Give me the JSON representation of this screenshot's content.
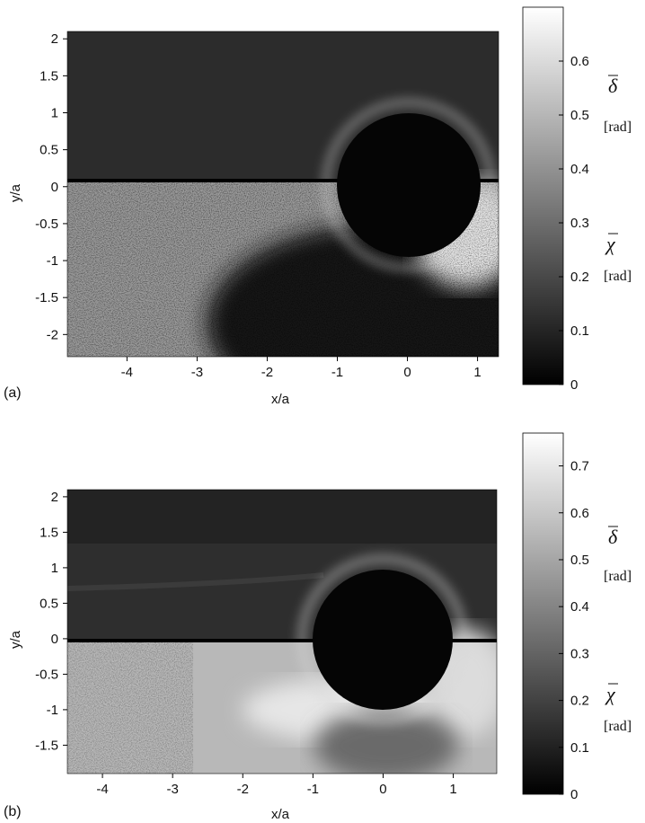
{
  "chart_data": [
    {
      "type": "heatmap",
      "panel_label": "(a)",
      "xlabel": "x/a",
      "ylabel": "y/a",
      "xlim": [
        -4.85,
        1.3
      ],
      "ylim": [
        -2.3,
        2.1
      ],
      "x_ticks": [
        "-4",
        "-3",
        "-2",
        "-1",
        "0",
        "1"
      ],
      "x_tick_values": [
        -4,
        -3,
        -2,
        -1,
        0,
        1
      ],
      "y_ticks": [
        "2",
        "1.5",
        "1",
        "0.5",
        "0",
        "-0.5",
        "-1",
        "-1.5",
        "-2"
      ],
      "y_tick_values": [
        2,
        1.5,
        1,
        0.5,
        0,
        -0.5,
        -1,
        -1.5,
        -2
      ],
      "colorbar": {
        "range": [
          0,
          0.7
        ],
        "ticks": [
          "0",
          "0.1",
          "0.2",
          "0.3",
          "0.4",
          "0.5",
          "0.6"
        ],
        "tick_values": [
          0,
          0.1,
          0.2,
          0.3,
          0.4,
          0.5,
          0.6
        ],
        "colormap": "gray"
      },
      "upper_label": {
        "symbol": "δ",
        "unit": "[rad]"
      },
      "lower_label": {
        "symbol": "χ",
        "unit": "[rad]"
      },
      "cylinder": {
        "center": [
          0,
          0
        ],
        "radius": 1
      }
    },
    {
      "type": "heatmap",
      "panel_label": "(b)",
      "xlabel": "x/a",
      "ylabel": "y/a",
      "xlim": [
        -4.5,
        1.62
      ],
      "ylim": [
        -1.9,
        2.1
      ],
      "x_ticks": [
        "-4",
        "-3",
        "-2",
        "-1",
        "0",
        "1"
      ],
      "x_tick_values": [
        -4,
        -3,
        -2,
        -1,
        0,
        1
      ],
      "y_ticks": [
        "2",
        "1.5",
        "1",
        "0.5",
        "0",
        "-0.5",
        "-1",
        "-1.5"
      ],
      "y_tick_values": [
        2,
        1.5,
        1,
        0.5,
        0,
        -0.5,
        -1,
        -1.5
      ],
      "colorbar": {
        "range": [
          0,
          0.77
        ],
        "ticks": [
          "0",
          "0.1",
          "0.2",
          "0.3",
          "0.4",
          "0.5",
          "0.6",
          "0.7"
        ],
        "tick_values": [
          0,
          0.1,
          0.2,
          0.3,
          0.4,
          0.5,
          0.6,
          0.7
        ],
        "colormap": "gray"
      },
      "upper_label": {
        "symbol": "δ",
        "unit": "[rad]"
      },
      "lower_label": {
        "symbol": "χ",
        "unit": "[rad]"
      },
      "cylinder": {
        "center": [
          0,
          0
        ],
        "radius": 1
      }
    }
  ]
}
